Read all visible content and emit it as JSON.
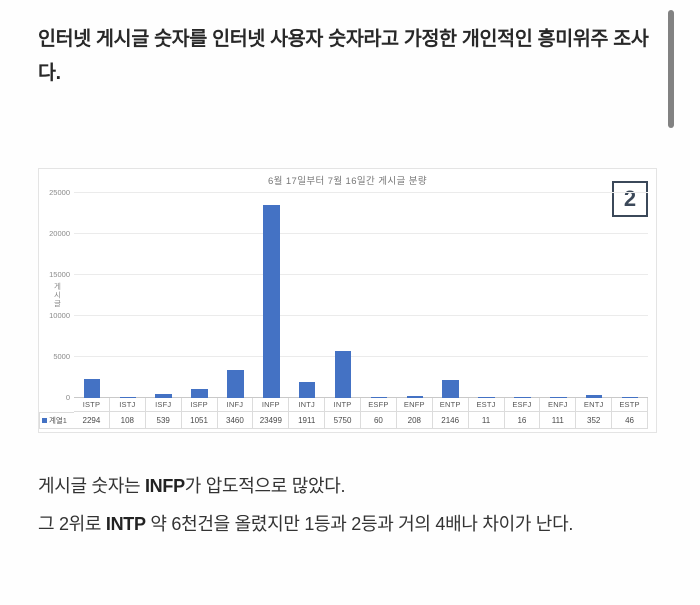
{
  "page": {
    "intro": "인터넷 게시글 숫자를 인터넷 사용자 숫자라고 가정한 개인적인 흥미위주 조사다.",
    "page_badge": "2",
    "conclusion_line1": {
      "prefix": "게시글 숫자는 ",
      "bold": "INFP",
      "suffix": "가 압도적으로 많았다."
    },
    "conclusion_line2": {
      "prefix": "그 2위로 ",
      "bold": "INTP",
      "suffix": " 약 6천건을 올렸지만 1등과 2등과 거의 4배나 차이가 난다."
    }
  },
  "chart_data": {
    "type": "bar",
    "title": "6월 17일부터 7월 16일간 게시글 분량",
    "xlabel": "",
    "ylabel": "게시글",
    "categories": [
      "ISTP",
      "ISTJ",
      "ISFJ",
      "ISFP",
      "INFJ",
      "INFP",
      "INTJ",
      "INTP",
      "ESFP",
      "ENFP",
      "ENTP",
      "ESTJ",
      "ESFJ",
      "ENFJ",
      "ENTJ",
      "ESTP"
    ],
    "series": [
      {
        "name": "계열1",
        "values": [
          2294,
          108,
          539,
          1051,
          3460,
          23499,
          1911,
          5750,
          60,
          208,
          2146,
          11,
          16,
          111,
          352,
          46
        ]
      }
    ],
    "ylim": [
      0,
      25000
    ],
    "yticks": [
      "0",
      "5000",
      "10000",
      "15000",
      "20000",
      "25000"
    ],
    "grid": true,
    "legend_position": "bottom-table",
    "bar_color": "#4472c4",
    "data_table": true
  }
}
